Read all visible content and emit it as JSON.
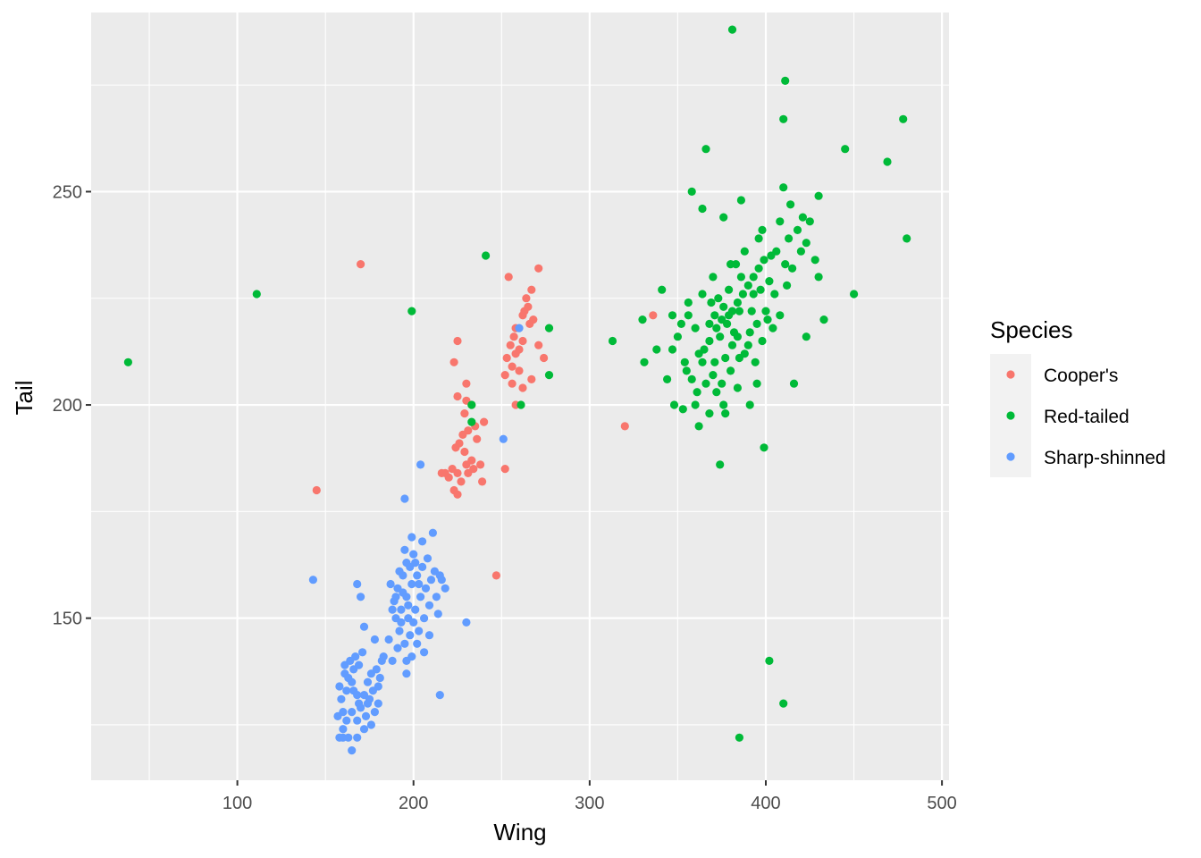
{
  "chart_data": {
    "type": "scatter",
    "title": "",
    "xlabel": "Wing",
    "ylabel": "Tail",
    "xlim": [
      17,
      504
    ],
    "ylim": [
      112,
      292
    ],
    "x_ticks": [
      100,
      200,
      300,
      400,
      500
    ],
    "y_ticks": [
      150,
      200,
      250
    ],
    "x_tick_labels": [
      "100",
      "200",
      "300",
      "400",
      "500"
    ],
    "y_tick_labels": [
      "150",
      "200",
      "250"
    ],
    "grid": true,
    "panel_background": "#ebebeb",
    "grid_color": "#ffffff",
    "legend": {
      "title": "Species",
      "position": "right",
      "entries": [
        "Cooper's",
        "Red-tailed",
        "Sharp-shinned"
      ]
    },
    "series": [
      {
        "name": "Cooper's",
        "color": "#f8766d",
        "points": [
          [
            170,
            233
          ],
          [
            145,
            180
          ],
          [
            254,
            230
          ],
          [
            267,
            227
          ],
          [
            271,
            232
          ],
          [
            262,
            221
          ],
          [
            264,
            225
          ],
          [
            265,
            223
          ],
          [
            266,
            219
          ],
          [
            258,
            218
          ],
          [
            262,
            215
          ],
          [
            268,
            220
          ],
          [
            271,
            214
          ],
          [
            274,
            211
          ],
          [
            267,
            206
          ],
          [
            255,
            214
          ],
          [
            258,
            212
          ],
          [
            253,
            211
          ],
          [
            256,
            209
          ],
          [
            252,
            207
          ],
          [
            260,
            208
          ],
          [
            256,
            205
          ],
          [
            262,
            204
          ],
          [
            258,
            200
          ],
          [
            225,
            215
          ],
          [
            223,
            210
          ],
          [
            230,
            205
          ],
          [
            225,
            202
          ],
          [
            230,
            201
          ],
          [
            229,
            198
          ],
          [
            233,
            200
          ],
          [
            240,
            196
          ],
          [
            235,
            195
          ],
          [
            228,
            193
          ],
          [
            231,
            194
          ],
          [
            236,
            192
          ],
          [
            226,
            191
          ],
          [
            229,
            189
          ],
          [
            233,
            187
          ],
          [
            224,
            190
          ],
          [
            230,
            186
          ],
          [
            234,
            185
          ],
          [
            238,
            186
          ],
          [
            231,
            184
          ],
          [
            218,
            184
          ],
          [
            222,
            185
          ],
          [
            225,
            184
          ],
          [
            220,
            183
          ],
          [
            223,
            180
          ],
          [
            227,
            182
          ],
          [
            216,
            184
          ],
          [
            225,
            179
          ],
          [
            239,
            182
          ],
          [
            252,
            185
          ],
          [
            247,
            160
          ],
          [
            320,
            195
          ],
          [
            336,
            221
          ],
          [
            257,
            216
          ],
          [
            263,
            222
          ],
          [
            260,
            213
          ]
        ]
      },
      {
        "name": "Red-tailed",
        "color": "#00ba38",
        "points": [
          [
            38,
            210
          ],
          [
            111,
            226
          ],
          [
            199,
            222
          ],
          [
            241,
            235
          ],
          [
            233,
            200
          ],
          [
            233,
            196
          ],
          [
            261,
            200
          ],
          [
            277,
            218
          ],
          [
            277,
            207
          ],
          [
            313,
            215
          ],
          [
            330,
            220
          ],
          [
            331,
            210
          ],
          [
            381,
            288
          ],
          [
            411,
            276
          ],
          [
            410,
            267
          ],
          [
            478,
            267
          ],
          [
            469,
            257
          ],
          [
            445,
            260
          ],
          [
            480,
            239
          ],
          [
            366,
            260
          ],
          [
            358,
            250
          ],
          [
            364,
            246
          ],
          [
            376,
            244
          ],
          [
            386,
            248
          ],
          [
            403,
            235
          ],
          [
            412,
            228
          ],
          [
            396,
            239
          ],
          [
            393,
            226
          ],
          [
            411,
            233
          ],
          [
            401,
            220
          ],
          [
            391,
            217
          ],
          [
            385,
            222
          ],
          [
            381,
            214
          ],
          [
            371,
            210
          ],
          [
            356,
            221
          ],
          [
            350,
            216
          ],
          [
            355,
            208
          ],
          [
            366,
            205
          ],
          [
            372,
            203
          ],
          [
            377,
            198
          ],
          [
            360,
            200
          ],
          [
            362,
            195
          ],
          [
            374,
            186
          ],
          [
            416,
            205
          ],
          [
            423,
            216
          ],
          [
            433,
            220
          ],
          [
            450,
            226
          ],
          [
            415,
            232
          ],
          [
            420,
            236
          ],
          [
            428,
            234
          ],
          [
            430,
            230
          ],
          [
            423,
            238
          ],
          [
            425,
            243
          ],
          [
            430,
            249
          ],
          [
            410,
            251
          ],
          [
            414,
            247
          ],
          [
            408,
            243
          ],
          [
            398,
            241
          ],
          [
            388,
            236
          ],
          [
            380,
            233
          ],
          [
            370,
            230
          ],
          [
            364,
            226
          ],
          [
            356,
            224
          ],
          [
            352,
            219
          ],
          [
            347,
            213
          ],
          [
            344,
            206
          ],
          [
            348,
            200
          ],
          [
            353,
            199
          ],
          [
            364,
            210
          ],
          [
            368,
            215
          ],
          [
            372,
            218
          ],
          [
            375,
            220
          ],
          [
            378,
            219
          ],
          [
            381,
            222
          ],
          [
            384,
            224
          ],
          [
            387,
            226
          ],
          [
            390,
            228
          ],
          [
            393,
            230
          ],
          [
            396,
            232
          ],
          [
            399,
            234
          ],
          [
            402,
            229
          ],
          [
            405,
            226
          ],
          [
            400,
            222
          ],
          [
            395,
            219
          ],
          [
            390,
            214
          ],
          [
            385,
            211
          ],
          [
            380,
            208
          ],
          [
            375,
            205
          ],
          [
            370,
            207
          ],
          [
            365,
            213
          ],
          [
            360,
            218
          ],
          [
            371,
            221
          ],
          [
            376,
            223
          ],
          [
            382,
            217
          ],
          [
            388,
            212
          ],
          [
            394,
            210
          ],
          [
            398,
            215
          ],
          [
            404,
            218
          ],
          [
            408,
            221
          ],
          [
            386,
            230
          ],
          [
            379,
            227
          ],
          [
            373,
            225
          ],
          [
            368,
            219
          ],
          [
            362,
            212
          ],
          [
            358,
            206
          ],
          [
            377,
            211
          ],
          [
            392,
            222
          ],
          [
            384,
            216
          ],
          [
            379,
            221
          ],
          [
            374,
            216
          ],
          [
            369,
            224
          ],
          [
            383,
            233
          ],
          [
            397,
            227
          ],
          [
            406,
            236
          ],
          [
            413,
            239
          ],
          [
            418,
            241
          ],
          [
            421,
            244
          ],
          [
            395,
            205
          ],
          [
            399,
            190
          ],
          [
            391,
            200
          ],
          [
            384,
            204
          ],
          [
            376,
            200
          ],
          [
            368,
            198
          ],
          [
            361,
            203
          ],
          [
            354,
            210
          ],
          [
            347,
            221
          ],
          [
            341,
            227
          ],
          [
            338,
            213
          ],
          [
            402,
            140
          ],
          [
            410,
            130
          ],
          [
            385,
            122
          ]
        ]
      },
      {
        "name": "Sharp-shinned",
        "color": "#619cff",
        "points": [
          [
            260,
            218
          ],
          [
            251,
            192
          ],
          [
            204,
            186
          ],
          [
            195,
            178
          ],
          [
            143,
            159
          ],
          [
            230,
            149
          ],
          [
            215,
            132
          ],
          [
            196,
            137
          ],
          [
            168,
            158
          ],
          [
            170,
            155
          ],
          [
            178,
            145
          ],
          [
            172,
            148
          ],
          [
            182,
            140
          ],
          [
            186,
            145
          ],
          [
            188,
            140
          ],
          [
            176,
            137
          ],
          [
            180,
            134
          ],
          [
            174,
            130
          ],
          [
            168,
            132
          ],
          [
            165,
            135
          ],
          [
            162,
            133
          ],
          [
            159,
            131
          ],
          [
            160,
            128
          ],
          [
            162,
            126
          ],
          [
            165,
            128
          ],
          [
            168,
            126
          ],
          [
            170,
            129
          ],
          [
            172,
            132
          ],
          [
            175,
            131
          ],
          [
            178,
            128
          ],
          [
            180,
            130
          ],
          [
            166,
            138
          ],
          [
            163,
            136
          ],
          [
            161,
            139
          ],
          [
            158,
            134
          ],
          [
            157,
            127
          ],
          [
            160,
            124
          ],
          [
            163,
            122
          ],
          [
            165,
            119
          ],
          [
            168,
            122
          ],
          [
            172,
            124
          ],
          [
            176,
            125
          ],
          [
            169,
            139
          ],
          [
            171,
            142
          ],
          [
            167,
            141
          ],
          [
            164,
            140
          ],
          [
            161,
            137
          ],
          [
            166,
            133
          ],
          [
            169,
            130
          ],
          [
            173,
            127
          ],
          [
            177,
            133
          ],
          [
            181,
            136
          ],
          [
            160,
            122
          ],
          [
            158,
            122
          ],
          [
            174,
            135
          ],
          [
            179,
            138
          ],
          [
            183,
            141
          ],
          [
            190,
            150
          ],
          [
            192,
            147
          ],
          [
            195,
            144
          ],
          [
            198,
            146
          ],
          [
            193,
            152
          ],
          [
            196,
            155
          ],
          [
            199,
            158
          ],
          [
            202,
            160
          ],
          [
            205,
            162
          ],
          [
            200,
            165
          ],
          [
            196,
            163
          ],
          [
            194,
            160
          ],
          [
            191,
            157
          ],
          [
            189,
            154
          ],
          [
            188,
            152
          ],
          [
            197,
            150
          ],
          [
            201,
            152
          ],
          [
            204,
            155
          ],
          [
            207,
            157
          ],
          [
            210,
            159
          ],
          [
            212,
            161
          ],
          [
            215,
            160
          ],
          [
            213,
            155
          ],
          [
            209,
            153
          ],
          [
            206,
            150
          ],
          [
            203,
            147
          ],
          [
            200,
            149
          ],
          [
            197,
            153
          ],
          [
            194,
            156
          ],
          [
            201,
            163
          ],
          [
            205,
            168
          ],
          [
            199,
            169
          ],
          [
            211,
            170
          ],
          [
            216,
            159
          ],
          [
            218,
            157
          ],
          [
            214,
            151
          ],
          [
            209,
            146
          ],
          [
            206,
            142
          ],
          [
            193,
            149
          ],
          [
            190,
            155
          ],
          [
            187,
            158
          ],
          [
            192,
            161
          ],
          [
            195,
            166
          ],
          [
            198,
            162
          ],
          [
            203,
            158
          ],
          [
            208,
            164
          ],
          [
            202,
            144
          ],
          [
            199,
            141
          ],
          [
            196,
            140
          ],
          [
            191,
            143
          ]
        ]
      }
    ]
  }
}
